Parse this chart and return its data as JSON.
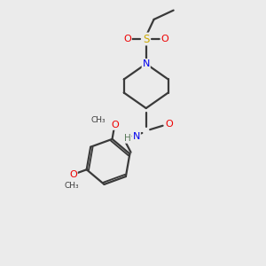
{
  "bg_color": "#ebebeb",
  "bond_color": "#3a3a3a",
  "atom_colors": {
    "N": "#0000ee",
    "O": "#ee0000",
    "S": "#ccaa00",
    "C": "#3a3a3a",
    "H": "#5a7a5a"
  },
  "figsize": [
    3.0,
    3.0
  ],
  "dpi": 100,
  "lw": 1.6
}
